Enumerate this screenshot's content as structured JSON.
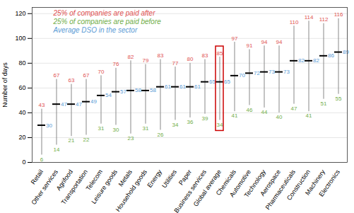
{
  "chart_data": {
    "type": "range",
    "categories": [
      "Retail",
      "Other services",
      "Agrifood",
      "Transportation",
      "Telecom",
      "Leisure goods",
      "Metals",
      "Household goods",
      "Energy",
      "Utilities",
      "Paper",
      "Business services",
      "Global average",
      "Chemicals",
      "Automotive",
      "Technology",
      "Aerospace",
      "Pharmaceuticals",
      "Construction",
      "Machinery",
      "Electronics"
    ],
    "series": [
      {
        "name": "25% of companies are paid after",
        "color": "#e05050",
        "values": [
          43,
          67,
          63,
          67,
          70,
          76,
          82,
          79,
          83,
          77,
          80,
          83,
          85,
          97,
          91,
          94,
          94,
          110,
          114,
          112,
          116
        ]
      },
      {
        "name": "25% of companies are paid before",
        "color": "#70ad47",
        "values": [
          6,
          14,
          21,
          22,
          31,
          30,
          23,
          31,
          26,
          34,
          36,
          39,
          34,
          41,
          46,
          44,
          40,
          47,
          41,
          51,
          55
        ]
      },
      {
        "name": "Average DSO in the sector",
        "color": "#5b9bd5",
        "values": [
          30,
          47,
          47,
          49,
          54,
          57,
          58,
          58,
          61,
          61,
          61,
          65,
          65,
          70,
          72,
          73,
          73,
          82,
          82,
          86,
          89
        ]
      }
    ],
    "color": "#888888",
    "highlight": {
      "category": "Global average",
      "color": "#cc0000"
    },
    "ylabel": "Number of days",
    "ylim": [
      0,
      125
    ],
    "yticks": [
      0,
      20,
      40,
      60,
      80,
      100,
      120
    ],
    "grid": true,
    "data_labels": true
  }
}
